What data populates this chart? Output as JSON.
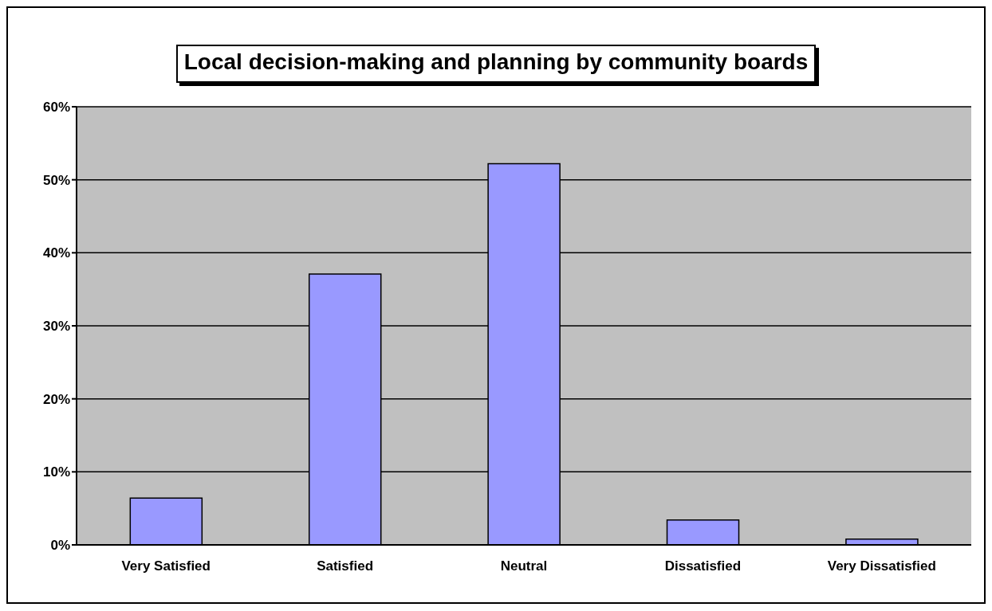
{
  "chart_data": {
    "type": "bar",
    "title": "Local decision-making and planning by community boards",
    "categories": [
      "Very Satisfied",
      "Satisfied",
      "Neutral",
      "Dissatisfied",
      "Very Dissatisfied"
    ],
    "values": [
      6.4,
      37.1,
      52.2,
      3.4,
      0.8
    ],
    "color": "#9999ff",
    "ylim": [
      0,
      60
    ],
    "yticks": [
      {
        "value": 0,
        "label": "0%"
      },
      {
        "value": 10,
        "label": "10%"
      },
      {
        "value": 20,
        "label": "20%"
      },
      {
        "value": 30,
        "label": "30%"
      },
      {
        "value": 40,
        "label": "40%"
      },
      {
        "value": 50,
        "label": "50%"
      },
      {
        "value": 60,
        "label": "60%"
      }
    ],
    "grid": "y"
  }
}
